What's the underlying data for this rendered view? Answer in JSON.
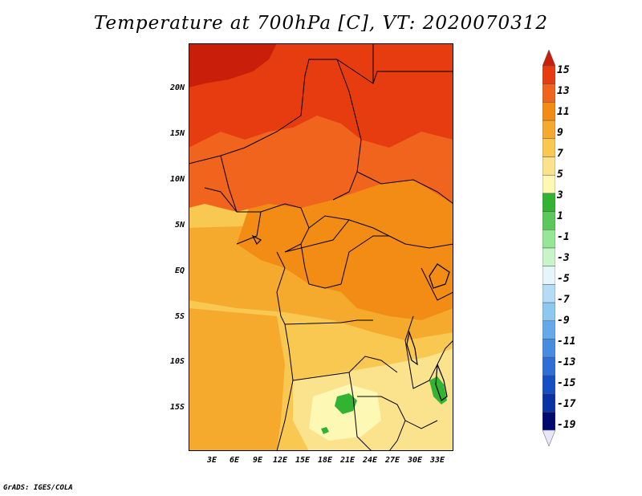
{
  "title": "Temperature at 700hPa [C], VT: 2020070312",
  "footer": "GrADS: IGES/COLA",
  "y_axis": {
    "labels": [
      "20N",
      "15N",
      "10N",
      "5N",
      "EQ",
      "5S",
      "10S",
      "15S"
    ]
  },
  "x_axis": {
    "labels": [
      "3E",
      "6E",
      "9E",
      "12E",
      "15E",
      "18E",
      "21E",
      "24E",
      "27E",
      "30E",
      "33E"
    ]
  },
  "colorbar": {
    "labels": [
      "15",
      "13",
      "11",
      "9",
      "7",
      "5",
      "3",
      "1",
      "-1",
      "-3",
      "-5",
      "-7",
      "-9",
      "-11",
      "-13",
      "-15",
      "-17",
      "-19"
    ],
    "colors": [
      "#c81e0a",
      "#e63c0f",
      "#f0641e",
      "#f28c14",
      "#f5aa2d",
      "#f9c850",
      "#fbe28c",
      "#fdf8b4",
      "#32b432",
      "#5ac85a",
      "#96e696",
      "#c8f5c8",
      "#e6f5fa",
      "#b4dcf5",
      "#8cc8f0",
      "#64aaeb",
      "#468ce1",
      "#2d6ed7",
      "#1450c3",
      "#0a32a5",
      "#000a6e",
      "#e6e6fa"
    ]
  },
  "map_colors": {
    "ocean": "#f5aa2d",
    "sahara_hot": "#e63c0f",
    "sahara_hottest": "#c81e0a",
    "sahel": "#f0641e",
    "central": "#f28c14",
    "south": "#f9c850",
    "south_light": "#fbe28c",
    "cool_patch": "#fdf8b4",
    "green_patch": "#32b432",
    "border": "#000000"
  }
}
